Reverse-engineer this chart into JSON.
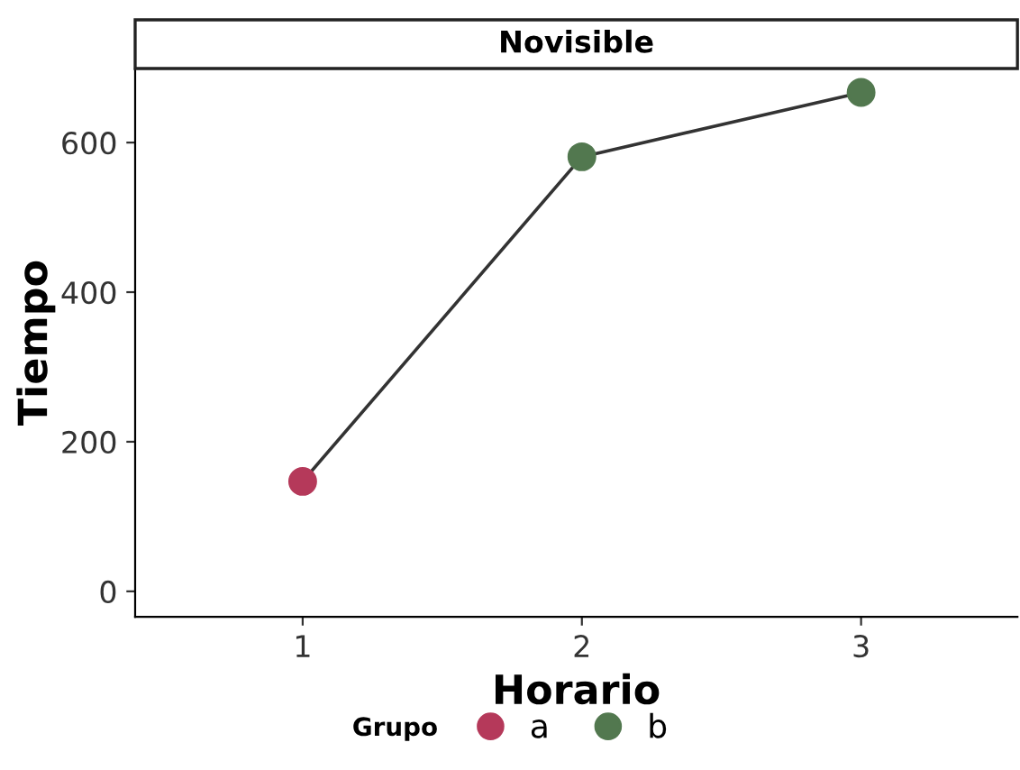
{
  "chart_data": {
    "type": "line",
    "title": "Novisible",
    "xlabel": "Horario",
    "ylabel": "Tiempo",
    "legend_title": "Grupo",
    "series": [
      {
        "color": "#333333",
        "x": [
          1,
          2,
          3
        ],
        "values": [
          147,
          581,
          667
        ],
        "marker": "none"
      },
      {
        "type": "scatter",
        "name": "a",
        "color": "#b5395a",
        "x": [
          1
        ],
        "values": [
          147
        ],
        "marker": "circle"
      },
      {
        "type": "scatter",
        "name": "b",
        "color": "#52784f",
        "x": [
          2,
          3
        ],
        "values": [
          581,
          667
        ],
        "marker": "circle"
      }
    ],
    "xlim": [
      0.4,
      3.56
    ],
    "ylim": [
      -34,
      699
    ],
    "xticks": [
      1,
      2,
      3
    ],
    "yticks": [
      0,
      200,
      400,
      600
    ],
    "legend": "bottom"
  }
}
